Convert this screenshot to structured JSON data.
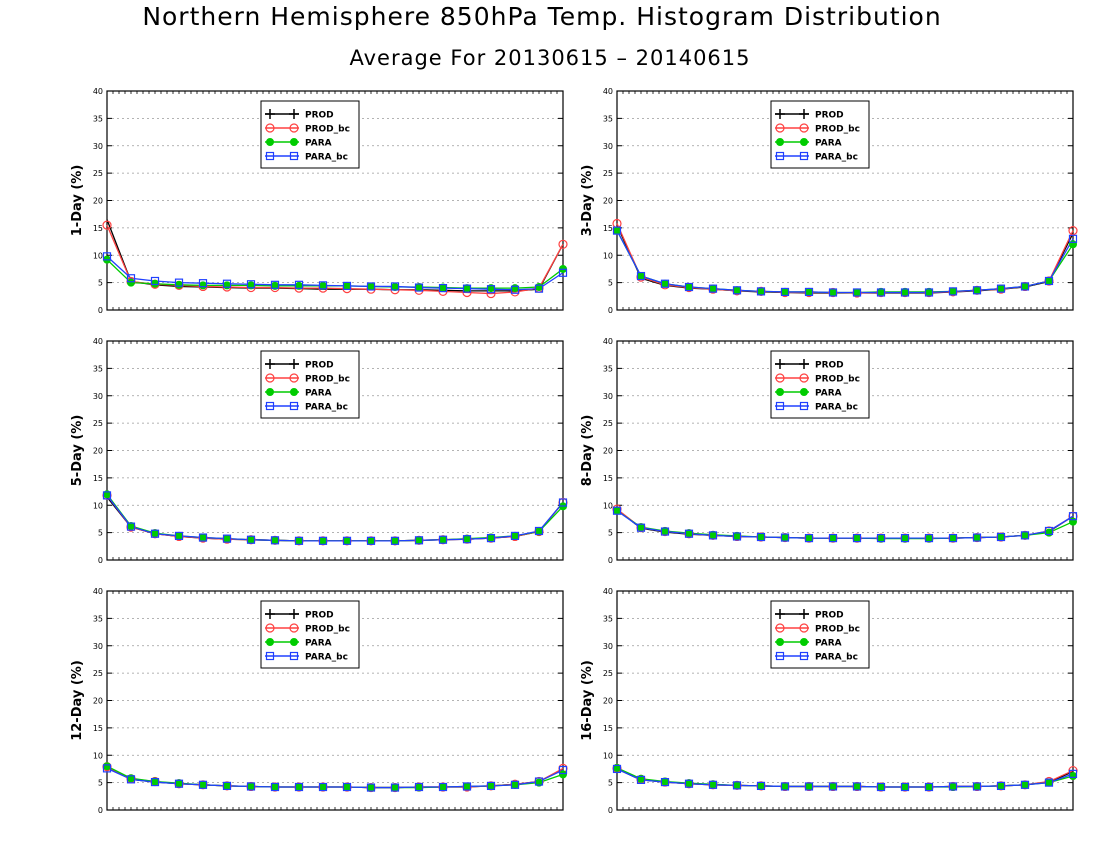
{
  "title": "Northern Hemisphere 850hPa Temp. Histogram Distribution",
  "subtitle": "Average For 20130615 – 20140615",
  "colors": {
    "PROD": "#000000",
    "PROD_bc": "#ff4040",
    "PARA": "#00cc00",
    "PARA_bc": "#2040ff"
  },
  "chart_data": [
    {
      "type": "line",
      "ylabel": "1-Day (%)",
      "ylim": [
        0,
        40
      ],
      "yticks": [
        0,
        5,
        10,
        15,
        20,
        25,
        30,
        35,
        40
      ],
      "grid": true,
      "legend_position": "top-center",
      "x": [
        1,
        2,
        3,
        4,
        5,
        6,
        7,
        8,
        9,
        10,
        11,
        12,
        13,
        14,
        15,
        16,
        17,
        18,
        19,
        20
      ],
      "series": [
        {
          "name": "PROD",
          "values": [
            16.5,
            5.2,
            4.6,
            4.3,
            4.2,
            4.1,
            4.0,
            4.0,
            3.9,
            3.8,
            3.8,
            3.8,
            3.7,
            3.7,
            3.6,
            3.5,
            3.5,
            3.5,
            3.8,
            12.0
          ]
        },
        {
          "name": "PROD_bc",
          "values": [
            15.5,
            5.2,
            4.7,
            4.5,
            4.3,
            4.2,
            4.1,
            4.1,
            4.0,
            4.0,
            3.9,
            3.8,
            3.7,
            3.6,
            3.4,
            3.2,
            3.0,
            3.3,
            4.0,
            12.0
          ]
        },
        {
          "name": "PARA",
          "values": [
            9.2,
            5.0,
            4.8,
            4.6,
            4.5,
            4.5,
            4.5,
            4.4,
            4.4,
            4.4,
            4.4,
            4.3,
            4.2,
            4.2,
            4.1,
            4.0,
            4.0,
            4.0,
            4.2,
            7.5
          ]
        },
        {
          "name": "PARA_bc",
          "values": [
            9.8,
            5.8,
            5.3,
            5.0,
            4.9,
            4.8,
            4.7,
            4.6,
            4.6,
            4.5,
            4.4,
            4.3,
            4.3,
            4.1,
            4.0,
            3.9,
            3.8,
            3.7,
            3.9,
            6.8
          ]
        }
      ]
    },
    {
      "type": "line",
      "ylabel": "3-Day (%)",
      "ylim": [
        0,
        40
      ],
      "yticks": [
        0,
        5,
        10,
        15,
        20,
        25,
        30,
        35,
        40
      ],
      "grid": true,
      "legend_position": "top-center",
      "x": [
        1,
        2,
        3,
        4,
        5,
        6,
        7,
        8,
        9,
        10,
        11,
        12,
        13,
        14,
        15,
        16,
        17,
        18,
        19,
        20
      ],
      "series": [
        {
          "name": "PROD",
          "values": [
            15.5,
            5.8,
            4.5,
            4.0,
            3.8,
            3.5,
            3.3,
            3.2,
            3.1,
            3.1,
            3.1,
            3.1,
            3.1,
            3.1,
            3.3,
            3.5,
            3.8,
            4.2,
            5.2,
            14.0
          ]
        },
        {
          "name": "PROD_bc",
          "values": [
            15.8,
            6.0,
            4.6,
            4.1,
            3.8,
            3.5,
            3.4,
            3.2,
            3.2,
            3.2,
            3.1,
            3.2,
            3.2,
            3.2,
            3.3,
            3.6,
            3.8,
            4.3,
            5.3,
            14.5
          ]
        },
        {
          "name": "PARA",
          "values": [
            14.5,
            6.2,
            4.8,
            4.2,
            3.9,
            3.6,
            3.4,
            3.3,
            3.3,
            3.2,
            3.2,
            3.3,
            3.3,
            3.3,
            3.4,
            3.6,
            3.9,
            4.3,
            5.3,
            12.0
          ]
        },
        {
          "name": "PARA_bc",
          "values": [
            14.5,
            6.2,
            4.8,
            4.2,
            3.9,
            3.6,
            3.4,
            3.3,
            3.3,
            3.2,
            3.2,
            3.2,
            3.2,
            3.2,
            3.4,
            3.6,
            3.9,
            4.3,
            5.3,
            13.0
          ]
        }
      ]
    },
    {
      "type": "line",
      "ylabel": "5-Day (%)",
      "ylim": [
        0,
        40
      ],
      "yticks": [
        0,
        5,
        10,
        15,
        20,
        25,
        30,
        35,
        40
      ],
      "grid": true,
      "legend_position": "top-center",
      "x": [
        1,
        2,
        3,
        4,
        5,
        6,
        7,
        8,
        9,
        10,
        11,
        12,
        13,
        14,
        15,
        16,
        17,
        18,
        19,
        20
      ],
      "series": [
        {
          "name": "PROD",
          "values": [
            11.5,
            6.0,
            4.8,
            4.3,
            4.0,
            3.8,
            3.7,
            3.6,
            3.5,
            3.5,
            3.5,
            3.5,
            3.5,
            3.6,
            3.7,
            3.8,
            4.0,
            4.3,
            5.2,
            10.5
          ]
        },
        {
          "name": "PROD_bc",
          "values": [
            11.8,
            6.0,
            4.8,
            4.3,
            4.0,
            3.8,
            3.7,
            3.6,
            3.5,
            3.5,
            3.5,
            3.5,
            3.5,
            3.6,
            3.7,
            3.8,
            4.0,
            4.3,
            5.2,
            10.5
          ]
        },
        {
          "name": "PARA",
          "values": [
            12.0,
            6.2,
            4.9,
            4.4,
            4.1,
            3.9,
            3.7,
            3.6,
            3.5,
            3.5,
            3.5,
            3.5,
            3.5,
            3.6,
            3.7,
            3.9,
            4.1,
            4.4,
            5.2,
            9.8
          ]
        },
        {
          "name": "PARA_bc",
          "values": [
            11.8,
            6.1,
            4.8,
            4.4,
            4.1,
            3.9,
            3.7,
            3.6,
            3.5,
            3.5,
            3.5,
            3.5,
            3.5,
            3.6,
            3.7,
            3.8,
            4.0,
            4.4,
            5.3,
            10.5
          ]
        }
      ]
    },
    {
      "type": "line",
      "ylabel": "8-Day (%)",
      "ylim": [
        0,
        40
      ],
      "yticks": [
        0,
        5,
        10,
        15,
        20,
        25,
        30,
        35,
        40
      ],
      "grid": true,
      "legend_position": "top-center",
      "x": [
        1,
        2,
        3,
        4,
        5,
        6,
        7,
        8,
        9,
        10,
        11,
        12,
        13,
        14,
        15,
        16,
        17,
        18,
        19,
        20
      ],
      "series": [
        {
          "name": "PROD",
          "values": [
            9.2,
            5.8,
            5.1,
            4.7,
            4.5,
            4.3,
            4.2,
            4.1,
            4.0,
            4.0,
            4.0,
            4.0,
            4.0,
            4.0,
            4.0,
            4.1,
            4.2,
            4.5,
            5.2,
            8.0
          ]
        },
        {
          "name": "PROD_bc",
          "values": [
            9.3,
            5.9,
            5.2,
            4.8,
            4.5,
            4.3,
            4.2,
            4.1,
            4.0,
            4.0,
            4.0,
            4.0,
            4.0,
            4.0,
            4.0,
            4.1,
            4.2,
            4.5,
            5.3,
            8.0
          ]
        },
        {
          "name": "PARA",
          "values": [
            9.0,
            6.0,
            5.3,
            4.9,
            4.6,
            4.4,
            4.2,
            4.1,
            4.0,
            4.0,
            4.0,
            3.9,
            3.9,
            3.9,
            4.0,
            4.1,
            4.2,
            4.5,
            5.0,
            7.0
          ]
        },
        {
          "name": "PARA_bc",
          "values": [
            9.0,
            5.9,
            5.2,
            4.8,
            4.5,
            4.3,
            4.2,
            4.1,
            4.0,
            4.0,
            4.0,
            4.0,
            4.0,
            4.0,
            4.0,
            4.1,
            4.2,
            4.5,
            5.3,
            8.0
          ]
        }
      ]
    },
    {
      "type": "line",
      "ylabel": "12-Day (%)",
      "ylim": [
        0,
        40
      ],
      "yticks": [
        0,
        5,
        10,
        15,
        20,
        25,
        30,
        35,
        40
      ],
      "grid": true,
      "legend_position": "top-center",
      "x": [
        1,
        2,
        3,
        4,
        5,
        6,
        7,
        8,
        9,
        10,
        11,
        12,
        13,
        14,
        15,
        16,
        17,
        18,
        19,
        20
      ],
      "series": [
        {
          "name": "PROD",
          "values": [
            7.8,
            5.6,
            5.1,
            4.8,
            4.6,
            4.4,
            4.3,
            4.2,
            4.2,
            4.2,
            4.2,
            4.1,
            4.1,
            4.2,
            4.2,
            4.2,
            4.4,
            4.7,
            5.2,
            7.5
          ]
        },
        {
          "name": "PROD_bc",
          "values": [
            7.9,
            5.7,
            5.2,
            4.8,
            4.6,
            4.4,
            4.3,
            4.2,
            4.2,
            4.2,
            4.2,
            4.1,
            4.1,
            4.2,
            4.2,
            4.2,
            4.4,
            4.7,
            5.2,
            7.6
          ]
        },
        {
          "name": "PARA",
          "values": [
            8.0,
            5.8,
            5.2,
            4.9,
            4.6,
            4.4,
            4.3,
            4.2,
            4.2,
            4.2,
            4.2,
            4.1,
            4.1,
            4.1,
            4.2,
            4.3,
            4.4,
            4.6,
            5.0,
            6.5
          ]
        },
        {
          "name": "PARA_bc",
          "values": [
            7.6,
            5.6,
            5.1,
            4.8,
            4.6,
            4.4,
            4.3,
            4.2,
            4.2,
            4.2,
            4.2,
            4.1,
            4.1,
            4.2,
            4.2,
            4.3,
            4.4,
            4.6,
            5.2,
            7.3
          ]
        }
      ]
    },
    {
      "type": "line",
      "ylabel": "16-Day (%)",
      "ylim": [
        0,
        40
      ],
      "yticks": [
        0,
        5,
        10,
        15,
        20,
        25,
        30,
        35,
        40
      ],
      "grid": true,
      "legend_position": "top-center",
      "x": [
        1,
        2,
        3,
        4,
        5,
        6,
        7,
        8,
        9,
        10,
        11,
        12,
        13,
        14,
        15,
        16,
        17,
        18,
        19,
        20
      ],
      "series": [
        {
          "name": "PROD",
          "values": [
            7.5,
            5.5,
            5.1,
            4.8,
            4.6,
            4.5,
            4.4,
            4.3,
            4.3,
            4.3,
            4.3,
            4.2,
            4.2,
            4.2,
            4.3,
            4.3,
            4.4,
            4.6,
            5.1,
            7.0
          ]
        },
        {
          "name": "PROD_bc",
          "values": [
            7.6,
            5.6,
            5.1,
            4.8,
            4.6,
            4.5,
            4.4,
            4.3,
            4.3,
            4.3,
            4.3,
            4.2,
            4.2,
            4.2,
            4.3,
            4.3,
            4.4,
            4.6,
            5.2,
            7.2
          ]
        },
        {
          "name": "PARA",
          "values": [
            7.7,
            5.7,
            5.2,
            4.9,
            4.7,
            4.5,
            4.4,
            4.3,
            4.3,
            4.3,
            4.3,
            4.2,
            4.2,
            4.2,
            4.2,
            4.3,
            4.4,
            4.6,
            5.0,
            6.2
          ]
        },
        {
          "name": "PARA_bc",
          "values": [
            7.5,
            5.5,
            5.1,
            4.8,
            4.6,
            4.5,
            4.4,
            4.3,
            4.3,
            4.3,
            4.3,
            4.2,
            4.2,
            4.2,
            4.3,
            4.3,
            4.4,
            4.6,
            5.0,
            6.6
          ]
        }
      ]
    }
  ]
}
